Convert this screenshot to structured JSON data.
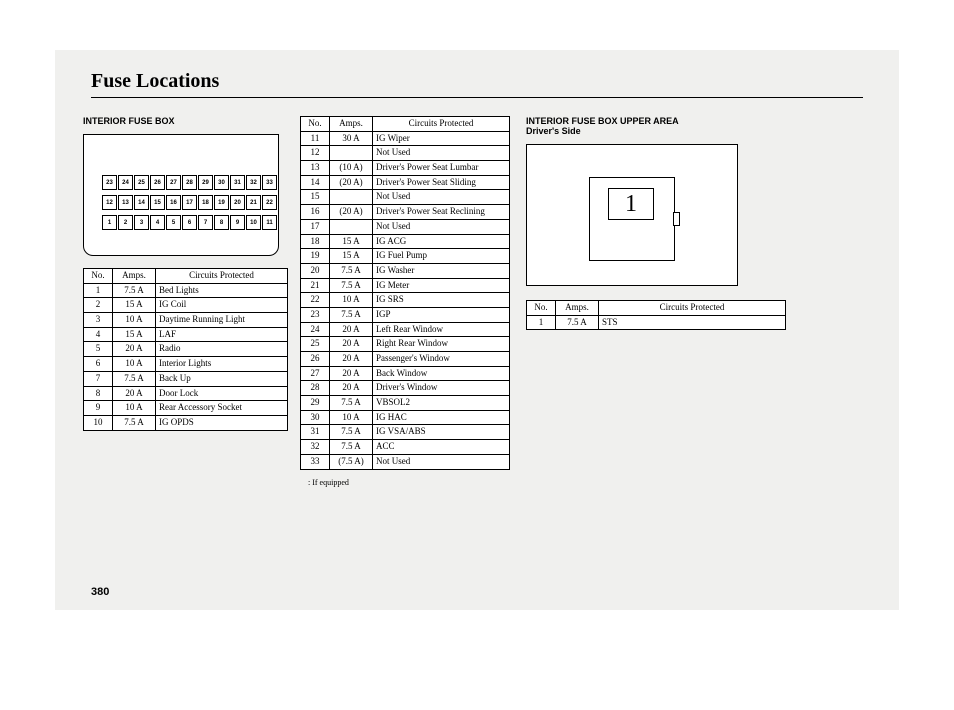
{
  "title": "Fuse Locations",
  "page_number": "380",
  "section1_label": "INTERIOR FUSE BOX",
  "section2_label": "INTERIOR FUSE BOX UPPER AREA\nDriver's Side",
  "footnote": ":   If equipped",
  "diagram1_rows": [
    [
      "23",
      "24",
      "25",
      "26",
      "27",
      "28",
      "29",
      "30",
      "31",
      "32",
      "33"
    ],
    [
      "12",
      "13",
      "14",
      "15",
      "16",
      "17",
      "18",
      "19",
      "20",
      "21",
      "22"
    ],
    [
      "1",
      "2",
      "3",
      "4",
      "5",
      "6",
      "7",
      "8",
      "9",
      "10",
      "11"
    ]
  ],
  "diagram2_label": "1",
  "headers": {
    "no": "No.",
    "amps": "Amps.",
    "cp": "Circuits Protected"
  },
  "table1": [
    {
      "no": "1",
      "amps": "7.5 A",
      "cp": "Bed Lights"
    },
    {
      "no": "2",
      "amps": "15 A",
      "cp": "IG Coil"
    },
    {
      "no": "3",
      "amps": "10 A",
      "cp": "Daytime Running Light"
    },
    {
      "no": "4",
      "amps": "15 A",
      "cp": "LAF"
    },
    {
      "no": "5",
      "amps": "20 A",
      "cp": "Radio"
    },
    {
      "no": "6",
      "amps": "10 A",
      "cp": "Interior Lights"
    },
    {
      "no": "7",
      "amps": "7.5 A",
      "cp": "Back Up"
    },
    {
      "no": "8",
      "amps": "20 A",
      "cp": "Door Lock"
    },
    {
      "no": "9",
      "amps": "10 A",
      "cp": "Rear Accessory Socket"
    },
    {
      "no": "10",
      "amps": "7.5 A",
      "cp": "IG OPDS"
    }
  ],
  "table2": [
    {
      "no": "11",
      "amps": "30 A",
      "cp": "IG Wiper"
    },
    {
      "no": "12",
      "amps": "",
      "cp": "Not Used"
    },
    {
      "no": "13",
      "amps": "(10 A)",
      "cp": "Driver's Power Seat Lumbar"
    },
    {
      "no": "14",
      "amps": "(20 A)",
      "cp": "Driver's Power Seat Sliding"
    },
    {
      "no": "15",
      "amps": "",
      "cp": "Not Used"
    },
    {
      "no": "16",
      "amps": "(20 A)",
      "cp": "Driver's Power Seat Reclining"
    },
    {
      "no": "17",
      "amps": "",
      "cp": "Not Used"
    },
    {
      "no": "18",
      "amps": "15 A",
      "cp": "IG ACG"
    },
    {
      "no": "19",
      "amps": "15 A",
      "cp": "IG Fuel Pump"
    },
    {
      "no": "20",
      "amps": "7.5 A",
      "cp": "IG Washer"
    },
    {
      "no": "21",
      "amps": "7.5 A",
      "cp": "IG Meter"
    },
    {
      "no": "22",
      "amps": "10 A",
      "cp": "IG SRS"
    },
    {
      "no": "23",
      "amps": "7.5 A",
      "cp": "IGP"
    },
    {
      "no": "24",
      "amps": "20 A",
      "cp": "Left Rear Window"
    },
    {
      "no": "25",
      "amps": "20 A",
      "cp": "Right Rear Window"
    },
    {
      "no": "26",
      "amps": "20 A",
      "cp": "Passenger's Window"
    },
    {
      "no": "27",
      "amps": "20 A",
      "cp": "Back Window"
    },
    {
      "no": "28",
      "amps": "20 A",
      "cp": "Driver's Window"
    },
    {
      "no": "29",
      "amps": "7.5 A",
      "cp": "VBSOL2"
    },
    {
      "no": "30",
      "amps": "10 A",
      "cp": "IG HAC"
    },
    {
      "no": "31",
      "amps": "7.5 A",
      "cp": "IG VSA/ABS"
    },
    {
      "no": "32",
      "amps": "7.5 A",
      "cp": "ACC"
    },
    {
      "no": "33",
      "amps": "(7.5 A)",
      "cp": "Not Used"
    }
  ],
  "table3": [
    {
      "no": "1",
      "amps": "7.5 A",
      "cp": "STS"
    }
  ]
}
